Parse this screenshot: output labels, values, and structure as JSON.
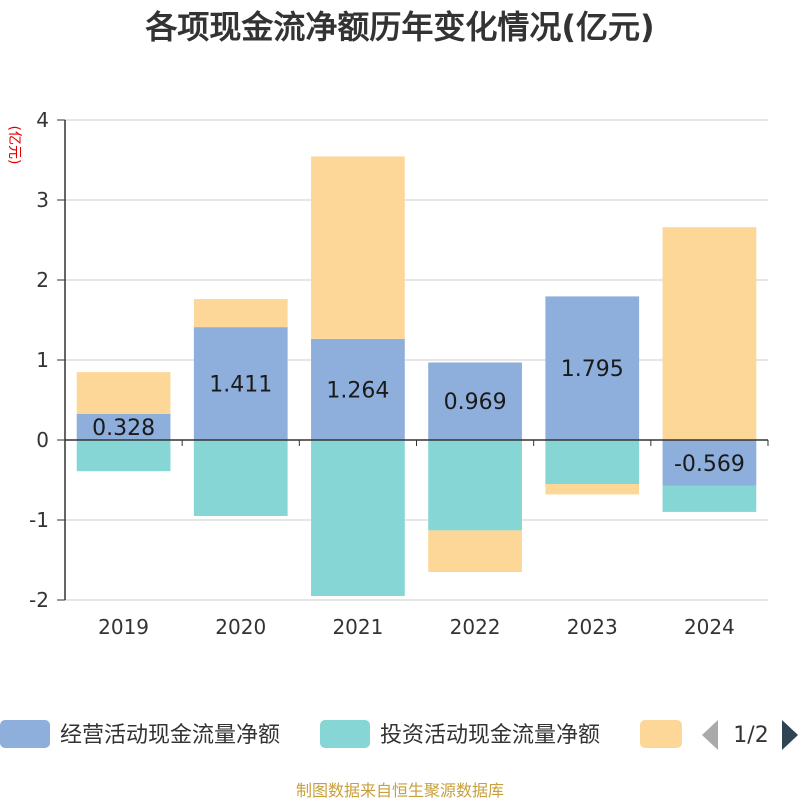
{
  "chart_data": {
    "type": "bar",
    "stacked": true,
    "title": "各项现金流净额历年变化情况(亿元)",
    "ylabel": "(亿元)",
    "categories": [
      "2019",
      "2020",
      "2021",
      "2022",
      "2023",
      "2024"
    ],
    "series": [
      {
        "name": "经营活动现金流量净额",
        "color": "#8eaedb",
        "values": [
          0.328,
          1.411,
          1.264,
          0.969,
          1.795,
          -0.569
        ]
      },
      {
        "name": "投资活动现金流量净额",
        "color": "#86d6d6",
        "values": [
          -0.39,
          -0.95,
          -1.95,
          -1.13,
          -0.55,
          -0.33
        ]
      },
      {
        "name": "",
        "color": "#fdd797",
        "values": [
          0.52,
          0.35,
          2.28,
          -0.52,
          -0.13,
          2.66
        ]
      }
    ],
    "data_labels_series": 0,
    "ylim": [
      -2,
      4
    ],
    "yticks": [
      -2,
      -1,
      0,
      1,
      2,
      3,
      4
    ],
    "grid": true,
    "legend_position": "bottom"
  },
  "legend": {
    "page": "1/2"
  },
  "source": "制图数据来自恒生聚源数据库"
}
